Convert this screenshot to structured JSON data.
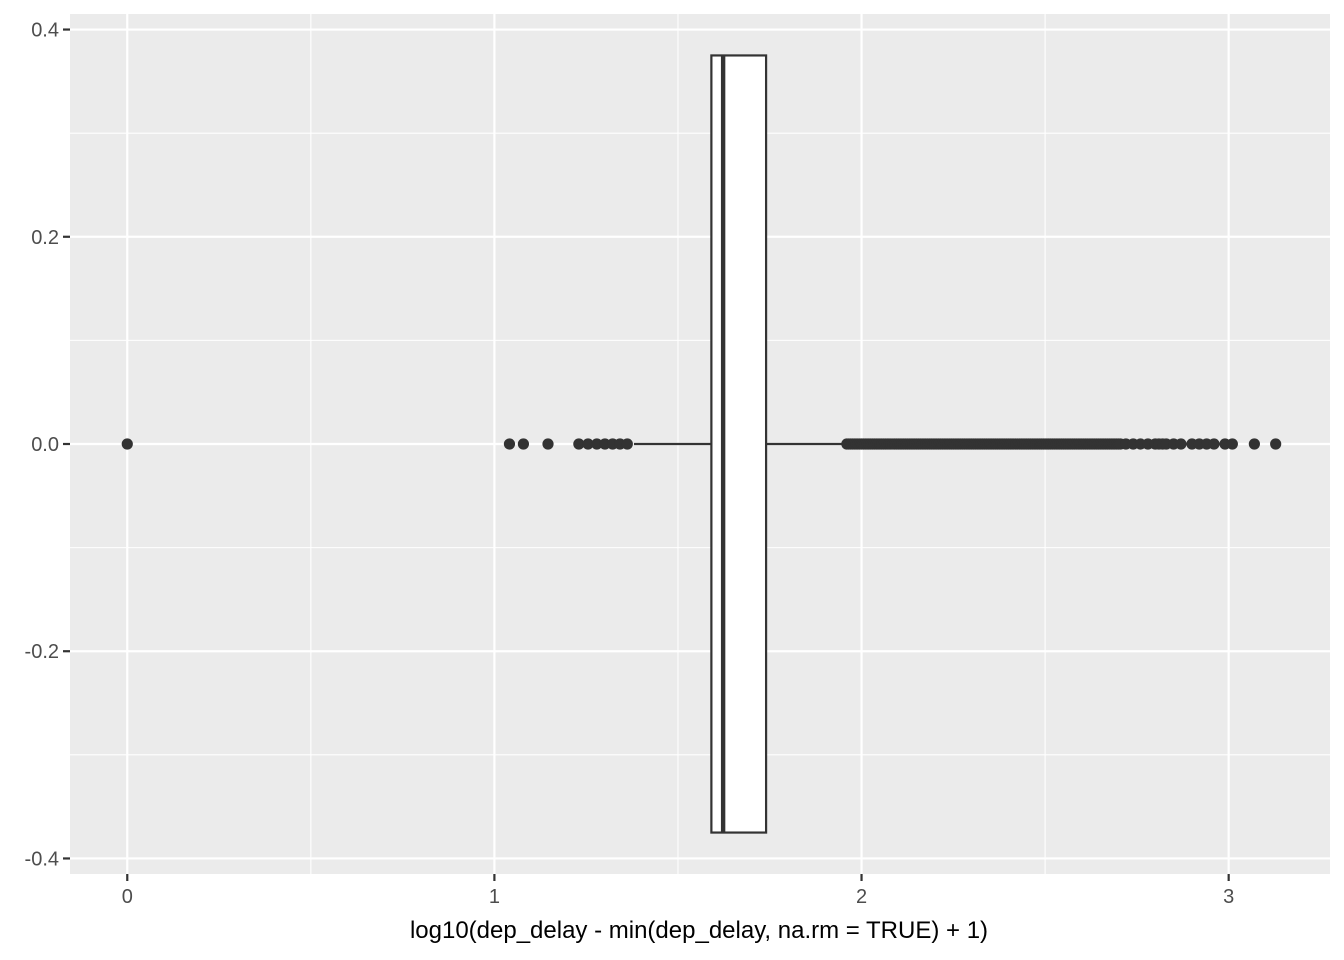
{
  "chart_data": {
    "type": "boxplot",
    "orientation": "horizontal",
    "title": "",
    "xlabel": "log10(dep_delay - min(dep_delay, na.rm = TRUE) + 1)",
    "ylabel": "",
    "xlim": [
      -0.156,
      3.276
    ],
    "ylim": [
      -0.415,
      0.415
    ],
    "x_ticks": [
      0,
      1,
      2,
      3
    ],
    "x_tick_labels": [
      "0",
      "1",
      "2",
      "3"
    ],
    "y_ticks": [
      -0.4,
      -0.2,
      0.0,
      0.2,
      0.4
    ],
    "y_tick_labels": [
      "-0.4",
      "-0.2",
      "0.0",
      "0.2",
      "0.4"
    ],
    "grid": true,
    "box": {
      "y": 0,
      "halfwidth": 0.375,
      "lower_whisker": 1.38,
      "q1": 1.591,
      "median": 1.623,
      "q3": 1.74,
      "upper_whisker": 1.96
    },
    "outliers": [
      0,
      1.041,
      1.079,
      1.146,
      1.23,
      1.255,
      1.279,
      1.301,
      1.322,
      1.342,
      1.362
    ],
    "outlier_band": {
      "from": 1.96,
      "to": 2.7,
      "step": 0.005
    },
    "outliers_upper_sparse": [
      2.705,
      2.72,
      2.74,
      2.76,
      2.78,
      2.8,
      2.81,
      2.82,
      2.83,
      2.85,
      2.87,
      2.9,
      2.92,
      2.94,
      2.96,
      2.99,
      3.01,
      3.07,
      3.128
    ]
  }
}
